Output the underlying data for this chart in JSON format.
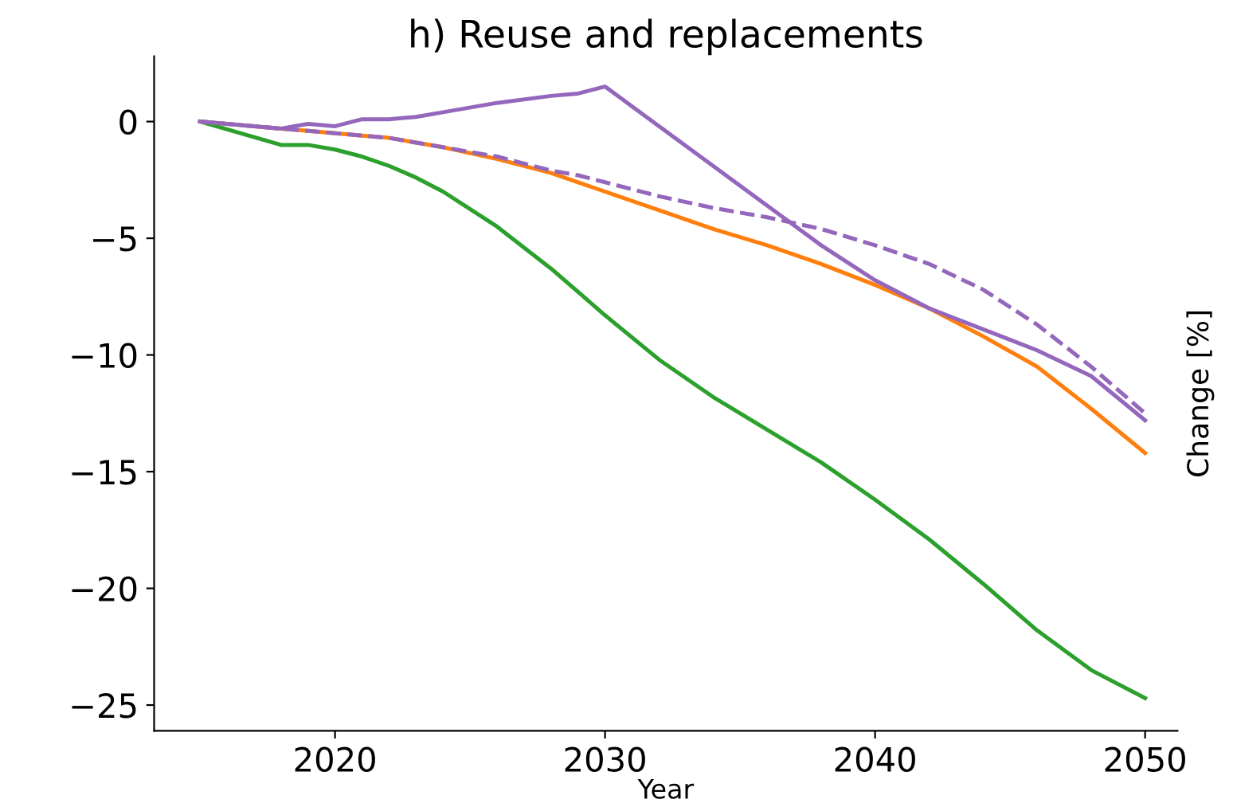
{
  "chart_data": {
    "type": "line",
    "title": "h) Reuse and replacements",
    "xlabel": "Year",
    "ylabel": "Change [%]",
    "x": [
      2015,
      2018,
      2019,
      2020,
      2021,
      2022,
      2023,
      2024,
      2026,
      2028,
      2029,
      2030,
      2032,
      2034,
      2036,
      2038,
      2040,
      2042,
      2044,
      2046,
      2048,
      2050
    ],
    "series": [
      {
        "color": "#2ca02c",
        "line_style": "solid",
        "values": [
          0,
          -1.0,
          -1.0,
          -1.2,
          -1.5,
          -1.9,
          -2.4,
          -3.0,
          -4.5,
          -6.3,
          -7.3,
          -8.3,
          -10.2,
          -11.8,
          -13.2,
          -14.6,
          -16.2,
          -17.9,
          -19.8,
          -21.8,
          -23.5,
          -24.7
        ]
      },
      {
        "color": "#ff7f0e",
        "line_style": "solid",
        "values": [
          0,
          -0.3,
          -0.4,
          -0.5,
          -0.6,
          -0.7,
          -0.9,
          -1.1,
          -1.6,
          -2.2,
          -2.6,
          -3.0,
          -3.8,
          -4.6,
          -5.3,
          -6.1,
          -7.0,
          -8.0,
          -9.2,
          -10.5,
          -12.3,
          -14.2
        ]
      },
      {
        "color": "#9467bd",
        "line_style": "dashed",
        "values": [
          0,
          -0.3,
          -0.4,
          -0.5,
          -0.6,
          -0.7,
          -0.9,
          -1.1,
          -1.5,
          -2.1,
          -2.3,
          -2.6,
          -3.2,
          -3.7,
          -4.1,
          -4.6,
          -5.3,
          -6.1,
          -7.2,
          -8.7,
          -10.5,
          -12.5
        ]
      },
      {
        "color": "#9467bd",
        "line_style": "solid",
        "values": [
          0,
          -0.3,
          -0.1,
          -0.2,
          0.1,
          0.1,
          0.2,
          0.4,
          0.8,
          1.1,
          1.2,
          1.5,
          -0.2,
          -1.9,
          -3.6,
          -5.3,
          -6.8,
          -8.0,
          -8.9,
          -9.8,
          -10.9,
          -12.8
        ]
      }
    ],
    "xlim": [
      2013.3,
      2051.2
    ],
    "xticks": [
      2020,
      2030,
      2040,
      2050
    ],
    "ylim": [
      -26.1,
      2.8
    ],
    "yticks": [
      0,
      -5,
      -10,
      -15,
      -20,
      -25
    ],
    "grid": false,
    "legend": false,
    "marker": "none"
  }
}
